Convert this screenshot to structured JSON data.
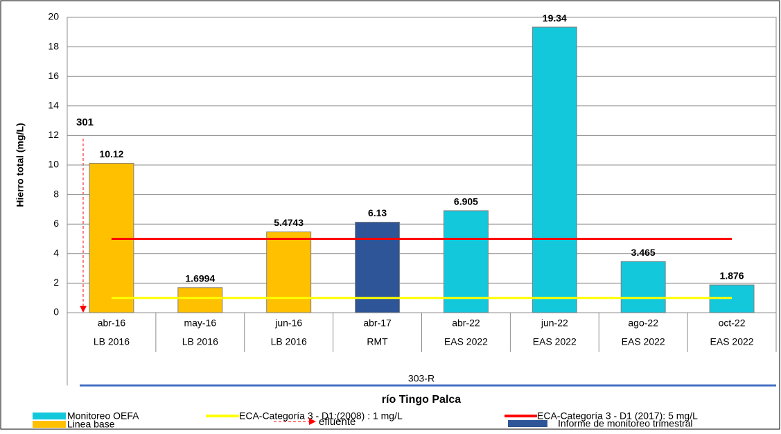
{
  "chart_data": {
    "type": "bar",
    "y_label": "Hierro total (mg/L)",
    "x_label": "río Tingo Palca",
    "categories": [
      "abr-16",
      "may-16",
      "jun-16",
      "abr-17",
      "abr-22",
      "jun-22",
      "ago-22",
      "oct-22"
    ],
    "groups": [
      "LB 2016",
      "LB 2016",
      "LB 2016",
      "RMT",
      "EAS 2022",
      "EAS 2022",
      "EAS 2022",
      "EAS 2022"
    ],
    "station": "303-R",
    "series": [
      {
        "name": "Monitoreo OEFA",
        "color": "#14c8dc",
        "values": [
          null,
          null,
          null,
          null,
          6.905,
          19.34,
          3.465,
          1.876
        ]
      },
      {
        "name": "Linea base",
        "color": "#ffc000",
        "values": [
          10.12,
          1.6994,
          5.4743,
          null,
          null,
          null,
          null,
          null
        ]
      },
      {
        "name": "Informe de monitoreo trimestral",
        "color": "#2e5597",
        "values": [
          null,
          null,
          null,
          6.13,
          null,
          null,
          null,
          null
        ]
      }
    ],
    "reference_lines": [
      {
        "name": "ECA-Categoría 3 - D1:(2008) : 1 mg/L",
        "color": "#ffff00",
        "value": 1
      },
      {
        "name": "ECA-Categoría 3 - D1 (2017): 5 mg/L",
        "color": "#ff0000",
        "value": 5
      }
    ],
    "annotation": "301",
    "arrow_legend": "efluente",
    "ylim": [
      0,
      20
    ],
    "yticks": [
      0,
      2,
      4,
      6,
      8,
      10,
      12,
      14,
      16,
      18,
      20
    ],
    "grid": true
  }
}
